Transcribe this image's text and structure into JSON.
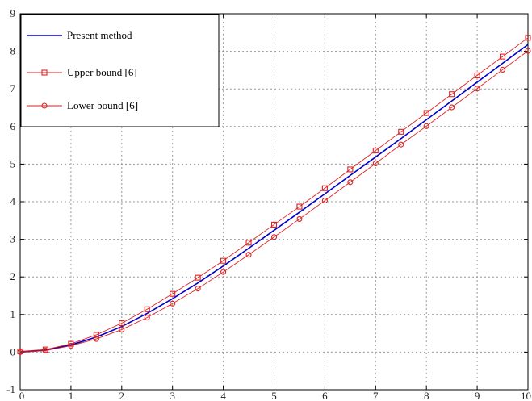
{
  "chart_data": {
    "type": "line",
    "title": "",
    "xlabel": "",
    "ylabel": "",
    "xlim": [
      0,
      10
    ],
    "ylim": [
      -1,
      9
    ],
    "xticks": [
      0,
      1,
      2,
      3,
      4,
      5,
      6,
      7,
      8,
      9,
      10
    ],
    "yticks": [
      -1,
      0,
      1,
      2,
      3,
      4,
      5,
      6,
      7,
      8,
      9
    ],
    "xtick_labels": [
      "0",
      "1",
      "2",
      "3",
      "4",
      "5",
      "6",
      "7",
      "8",
      "9",
      "10"
    ],
    "ytick_labels": [
      "-1",
      "0",
      "1",
      "2",
      "3",
      "4",
      "5",
      "6",
      "7",
      "8",
      "9"
    ],
    "grid": true,
    "legend_position": "top-left",
    "x": [
      0,
      0.5,
      1,
      1.5,
      2,
      2.5,
      3,
      3.5,
      4,
      4.5,
      5,
      5.5,
      6,
      6.5,
      7,
      7.5,
      8,
      8.5,
      9,
      9.5,
      10
    ],
    "series": [
      {
        "name": "Present method",
        "color": "#0000cc",
        "marker": "none",
        "values": [
          0,
          0.05,
          0.19,
          0.4,
          0.68,
          1.03,
          1.42,
          1.84,
          2.29,
          2.76,
          3.24,
          3.72,
          4.21,
          4.7,
          5.19,
          5.68,
          6.18,
          6.68,
          7.18,
          7.68,
          8.18
        ]
      },
      {
        "name": "Upper bound [6]",
        "color": "#dd2222",
        "marker": "square",
        "values": [
          0.02,
          0.07,
          0.22,
          0.46,
          0.77,
          1.14,
          1.55,
          1.98,
          2.43,
          2.91,
          3.39,
          3.87,
          4.36,
          4.86,
          5.36,
          5.86,
          6.36,
          6.86,
          7.36,
          7.86,
          8.36
        ]
      },
      {
        "name": "Lower bound [6]",
        "color": "#dd2222",
        "marker": "circle",
        "values": [
          0,
          0.04,
          0.17,
          0.35,
          0.6,
          0.92,
          1.29,
          1.69,
          2.13,
          2.59,
          3.06,
          3.54,
          4.03,
          4.52,
          5.02,
          5.52,
          6.01,
          6.51,
          7.01,
          7.51,
          8.01
        ]
      }
    ]
  }
}
